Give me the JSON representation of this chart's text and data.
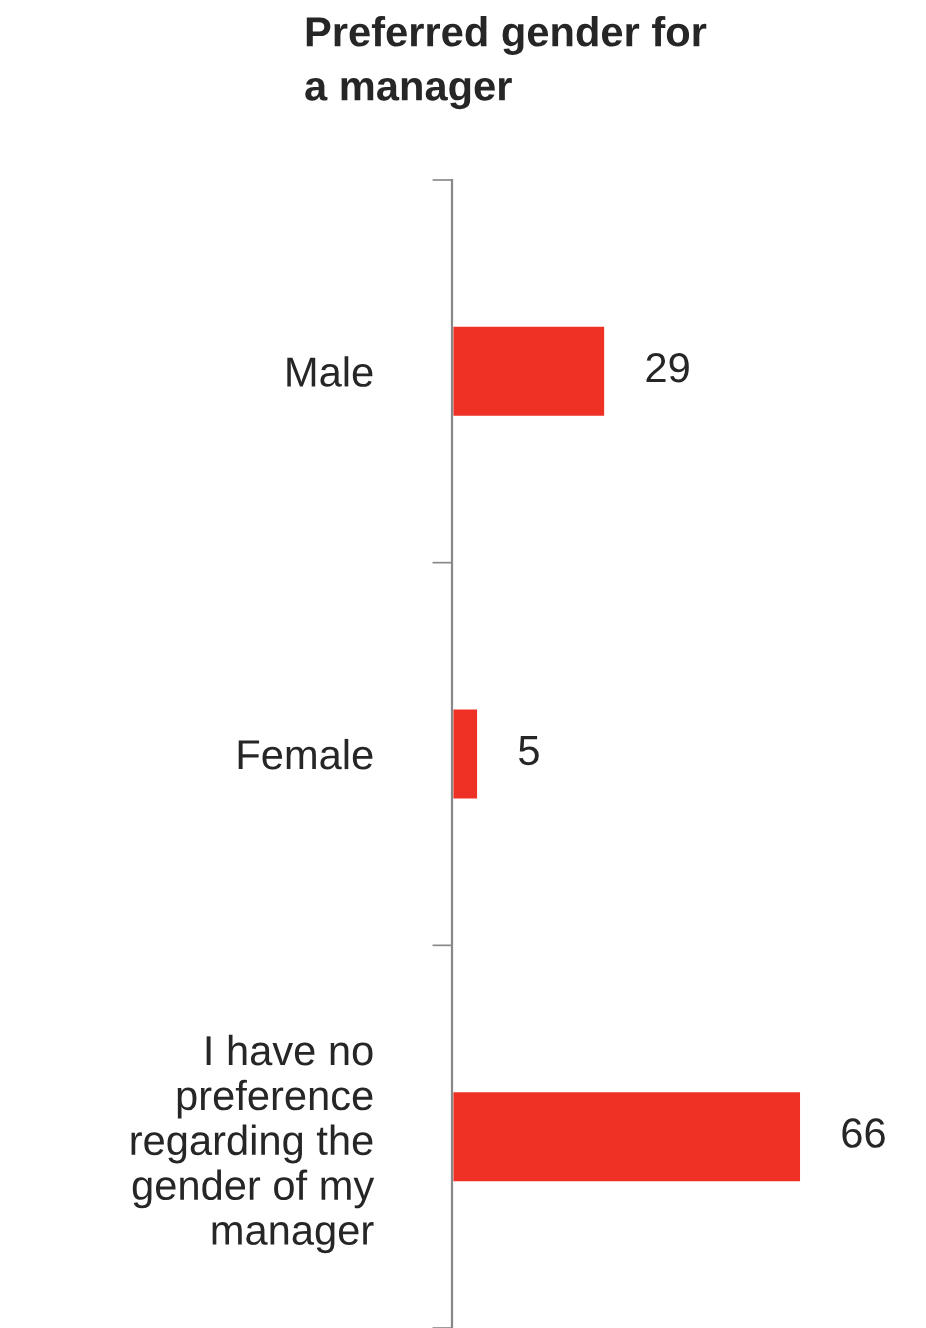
{
  "chart_data": {
    "type": "bar",
    "orientation": "horizontal",
    "title": "Preferred gender for\na manager",
    "categories": [
      "Male",
      "Female",
      "I have no\npreference\nregarding the\ngender of my\nmanager"
    ],
    "values": [
      29,
      5,
      66
    ],
    "color": "#ee3124",
    "data_labels": true,
    "tick_labels": "y",
    "grid": false,
    "legend": false
  }
}
